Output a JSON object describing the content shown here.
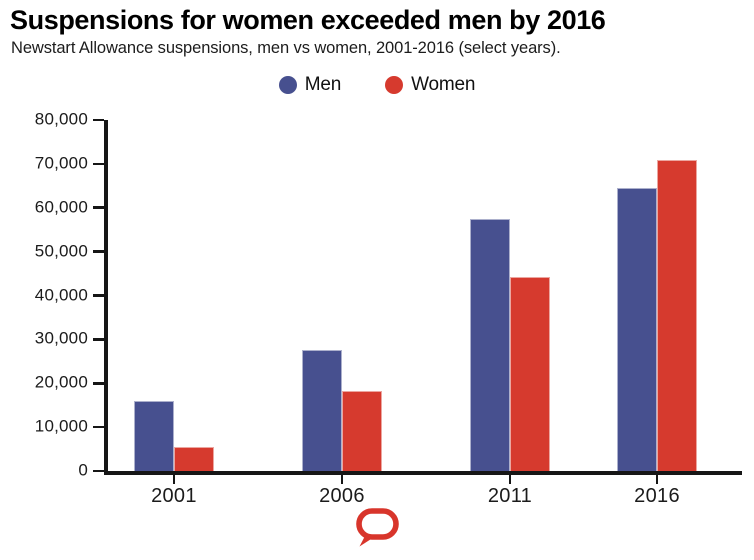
{
  "header": {
    "title": "Suspensions for women exceeded men by 2016",
    "subtitle": "Newstart Allowance suspensions, men vs women, 2001-2016 (select years)."
  },
  "chart_data": {
    "type": "bar",
    "title": "Suspensions for women exceeded men by 2016",
    "subtitle": "Newstart Allowance suspensions, men vs women, 2001-2016 (select years).",
    "categories": [
      "2001",
      "2006",
      "2011",
      "2016"
    ],
    "series": [
      {
        "name": "Men",
        "color": "#47508f",
        "values": [
          16000,
          27500,
          57500,
          64400
        ]
      },
      {
        "name": "Women",
        "color": "#d63a2e",
        "values": [
          5500,
          18300,
          44300,
          71000
        ]
      }
    ],
    "ylim": [
      0,
      80000
    ],
    "ytick_step": 10000,
    "ytick_labels": [
      "0",
      "10,000",
      "20,000",
      "30,000",
      "40,000",
      "50,000",
      "60,000",
      "70,000",
      "80,000"
    ],
    "grid": false,
    "legend_position": "top",
    "axis_color": "#161616"
  },
  "footer": {
    "logo_name": "the-conversation-logo",
    "logo_color": "#d8352b"
  }
}
